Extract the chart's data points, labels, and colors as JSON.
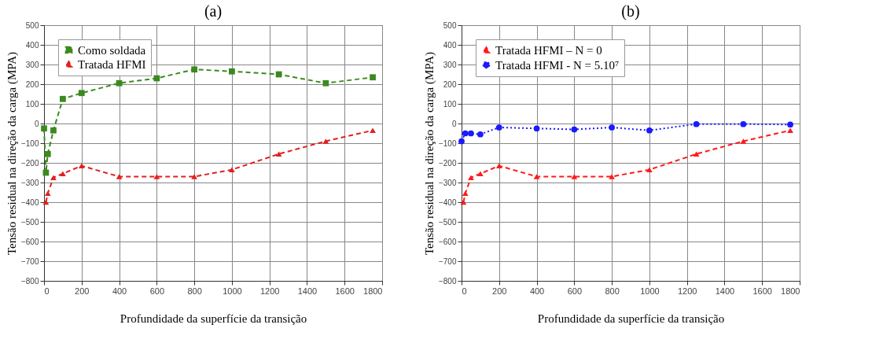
{
  "chart_data": [
    {
      "type": "line",
      "title": "(a)",
      "xlabel": "Profundidade da superfície da transição",
      "ylabel": "Tensão residual na direção da carga (MPA)",
      "xlim": [
        0,
        1800
      ],
      "xticks": [
        0,
        200,
        400,
        600,
        800,
        1000,
        1200,
        1400,
        1600,
        1800
      ],
      "ylim": [
        -800,
        500
      ],
      "yticks": [
        -800,
        -700,
        -600,
        -500,
        -400,
        -300,
        -200,
        -100,
        0,
        100,
        200,
        300,
        400,
        500
      ],
      "grid": true,
      "legend": "top left",
      "series": [
        {
          "name": "Como soldada",
          "color": "#3a8a1e",
          "marker": "square",
          "line_style": "dashed",
          "x": [
            0,
            10,
            20,
            50,
            100,
            200,
            400,
            600,
            800,
            1000,
            1250,
            1500,
            1750
          ],
          "values": [
            -25,
            -250,
            -155,
            -35,
            125,
            155,
            205,
            230,
            275,
            265,
            250,
            205,
            235
          ]
        },
        {
          "name": "Tratada HFMI",
          "color": "#e02020",
          "marker": "triangle",
          "line_style": "dashed",
          "x": [
            10,
            20,
            50,
            100,
            200,
            400,
            600,
            800,
            1000,
            1250,
            1500,
            1750
          ],
          "values": [
            -400,
            -355,
            -275,
            -255,
            -215,
            -270,
            -270,
            -270,
            -235,
            -155,
            -90,
            -35
          ]
        }
      ]
    },
    {
      "type": "line",
      "title": "(b)",
      "xlabel": "Profundidade da superfície da transição",
      "ylabel": "Tensão residual na direção da carga (MPA)",
      "xlim": [
        0,
        1800
      ],
      "xticks": [
        0,
        200,
        400,
        600,
        800,
        1000,
        1200,
        1400,
        1600,
        1800
      ],
      "ylim": [
        -800,
        500
      ],
      "yticks": [
        -800,
        -700,
        -600,
        -500,
        -400,
        -300,
        -200,
        -100,
        0,
        100,
        200,
        300,
        400,
        500
      ],
      "grid": true,
      "legend": "top left",
      "series": [
        {
          "name": "Tratada HFMI – N = 0",
          "color": "#ff1a1a",
          "marker": "triangle",
          "line_style": "dashed",
          "x": [
            10,
            20,
            50,
            100,
            200,
            400,
            600,
            800,
            1000,
            1250,
            1500,
            1750
          ],
          "values": [
            -400,
            -355,
            -275,
            -255,
            -215,
            -270,
            -270,
            -270,
            -235,
            -155,
            -90,
            -35
          ]
        },
        {
          "name": "Tratada HFMI - N = 5.10⁷",
          "color": "#1a1aff",
          "marker": "circle",
          "line_style": "dotted",
          "x": [
            0,
            20,
            50,
            100,
            200,
            400,
            600,
            800,
            1000,
            1250,
            1500,
            1750
          ],
          "values": [
            -90,
            -50,
            -50,
            -55,
            -20,
            -25,
            -30,
            -20,
            -35,
            -3,
            -3,
            -5
          ]
        }
      ]
    }
  ]
}
